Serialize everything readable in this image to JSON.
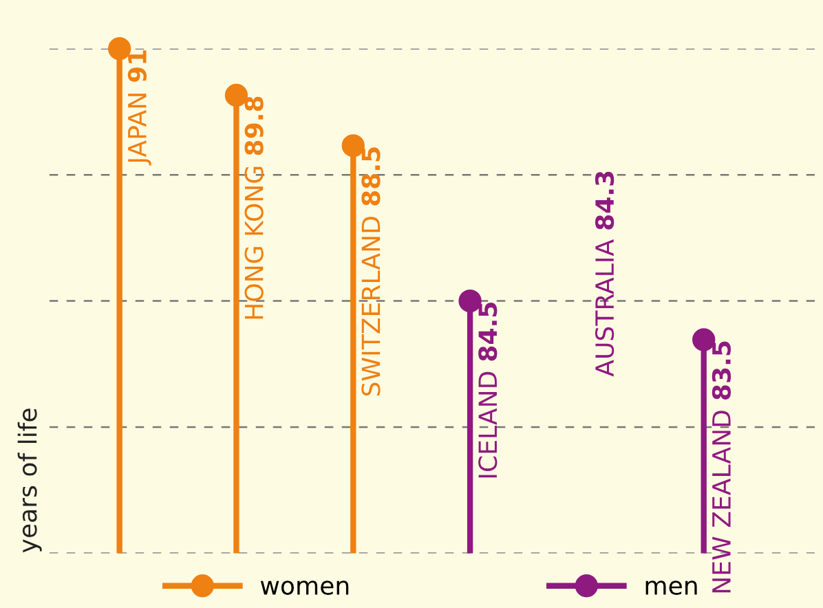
{
  "chart_data": {
    "type": "lollipop",
    "categories": [
      "JAPAN",
      "HONG KONG",
      "SWITZERLAND",
      "ICELAND",
      "AUSTRALIA",
      "NEW ZEALAND"
    ],
    "series": [
      {
        "name": "women",
        "color": "#ef8012",
        "values": [
          91,
          89.8,
          88.5,
          null,
          null,
          null
        ]
      },
      {
        "name": "men",
        "color": "#8e1a80",
        "values": [
          null,
          null,
          null,
          84.5,
          null,
          83.5
        ]
      }
    ],
    "annotations": [
      "84.3"
    ],
    "ylabel": "years of life",
    "ylim": [
      78,
      91
    ],
    "yticks": [
      {
        "value": 78,
        "label": null
      },
      {
        "value": 81.25,
        "label": null
      },
      {
        "value": 84.5,
        "label": null
      },
      {
        "value": 87.75,
        "label": null
      },
      {
        "value": 91,
        "label": null
      }
    ],
    "grid": "y",
    "line_style": "solid",
    "marker": "circle",
    "legend": "bottom",
    "tick_labels": false,
    "data_labels": true
  }
}
